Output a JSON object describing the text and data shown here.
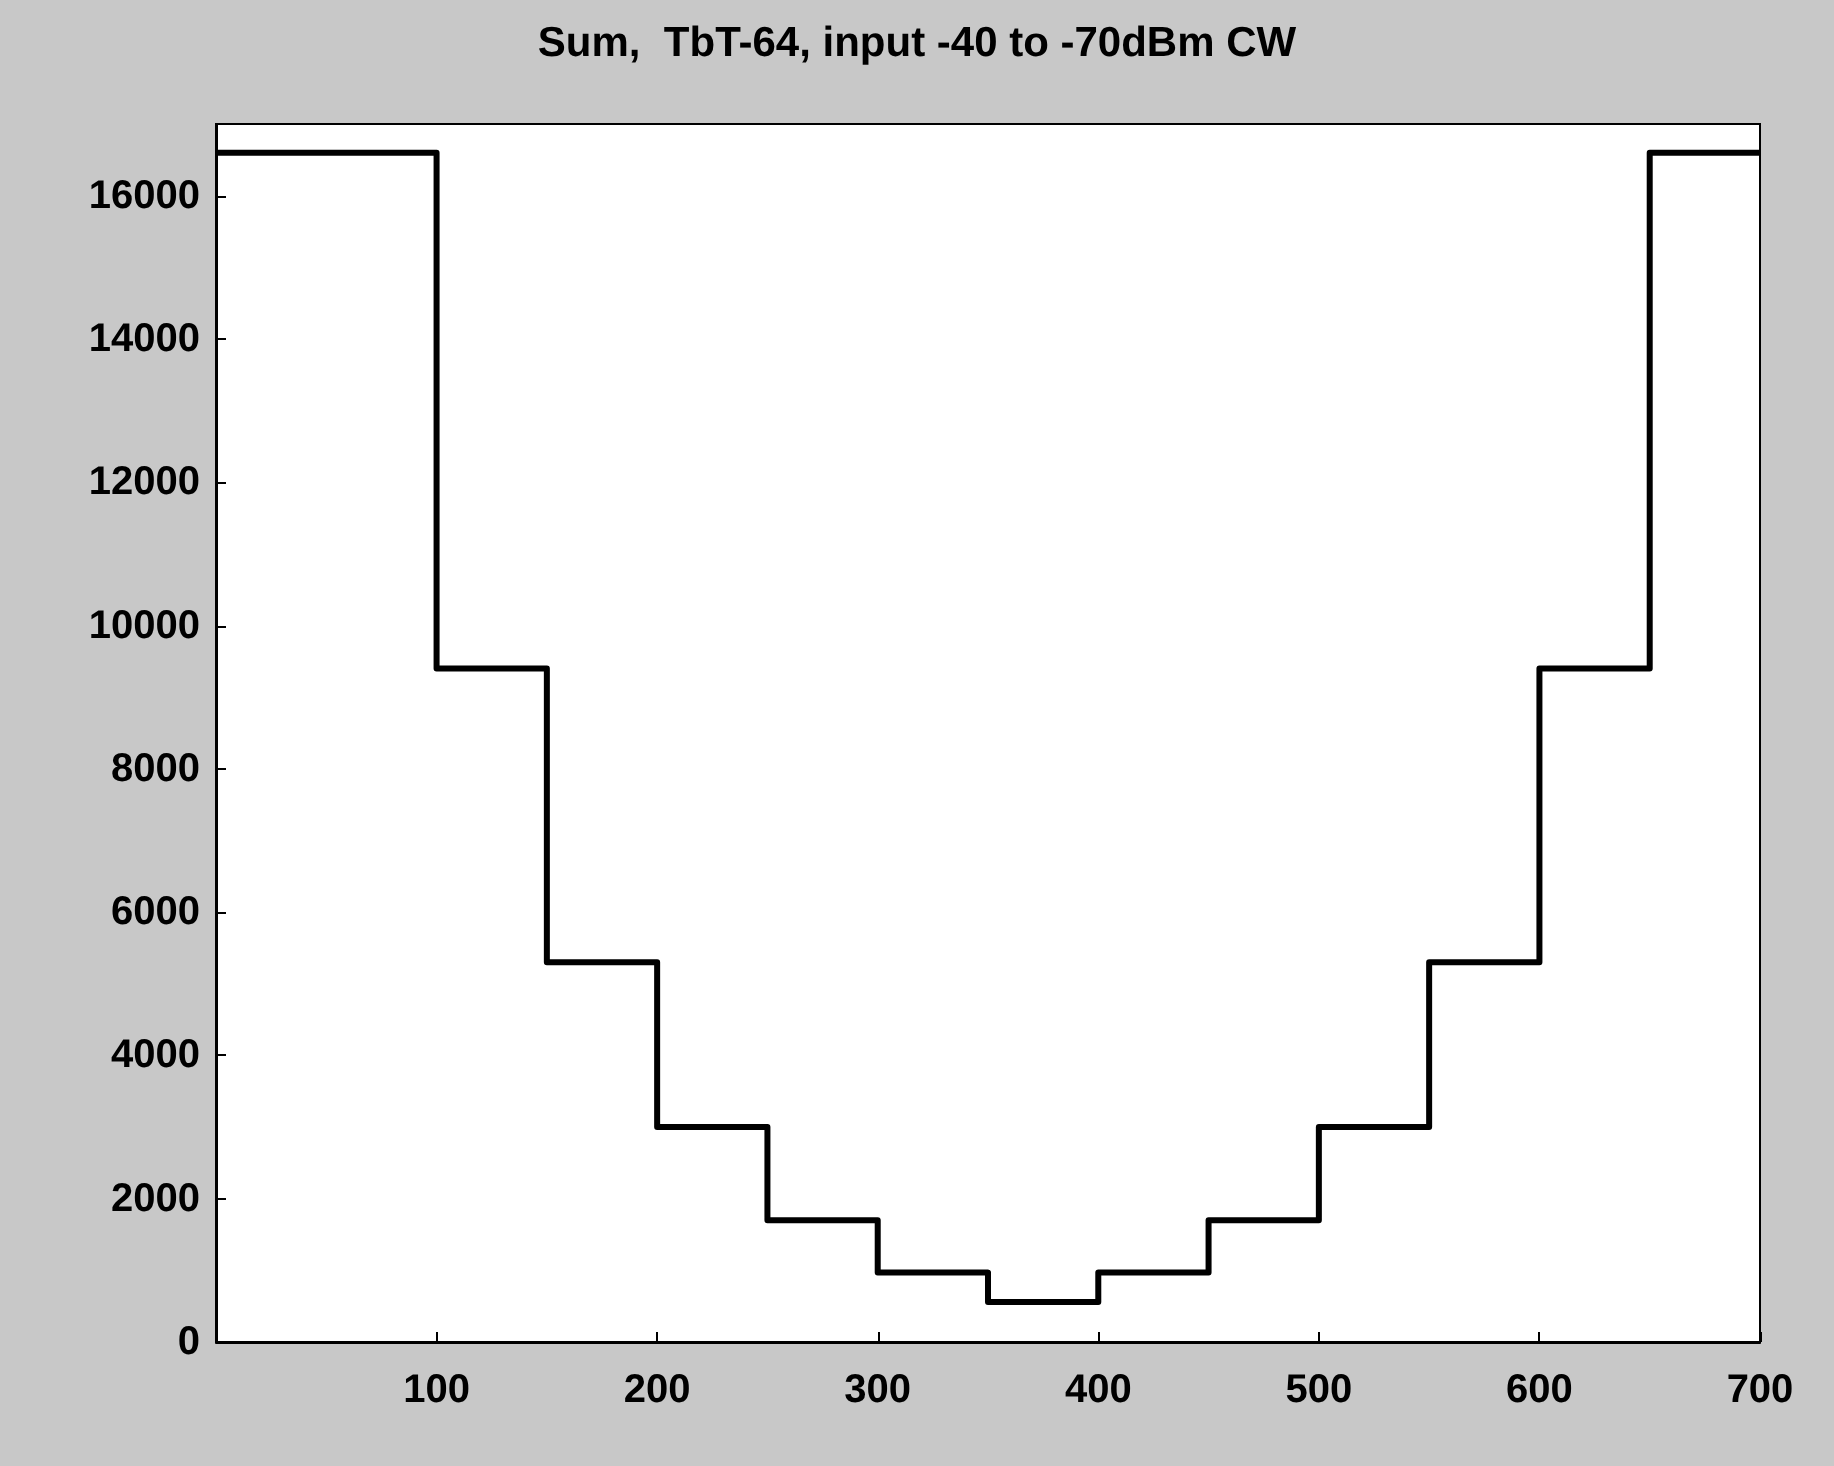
{
  "chart_data": {
    "type": "step",
    "title": "Sum,  TbT-64, input -40 to -70dBm CW",
    "x": [
      0,
      100,
      150,
      200,
      250,
      300,
      350,
      400,
      450,
      500,
      550,
      600,
      650,
      700
    ],
    "series": [
      {
        "color": "#000000",
        "values": [
          16600,
          9400,
          5300,
          3000,
          1700,
          970,
          560,
          970,
          1700,
          3000,
          5300,
          9400,
          16600,
          16600
        ]
      }
    ],
    "xlim": [
      0,
      700
    ],
    "xticks": [
      100,
      200,
      300,
      400,
      500,
      600,
      700
    ],
    "ylim": [
      0,
      17000
    ],
    "yticks": [
      0,
      2000,
      4000,
      6000,
      8000,
      10000,
      12000,
      14000,
      16000
    ],
    "grid": false
  }
}
